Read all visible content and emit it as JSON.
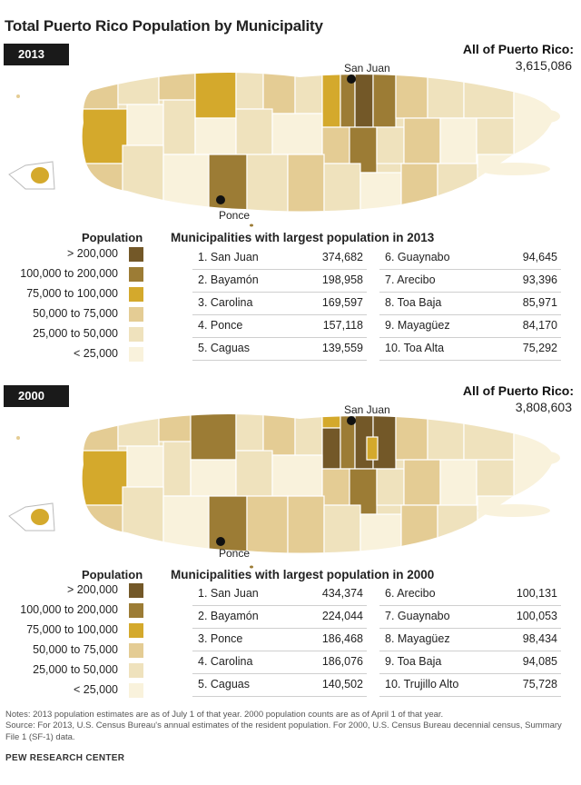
{
  "title": "Total Puerto Rico Population by Municipality",
  "colors": {
    "gt200k": "#735828",
    "100to200k": "#9c7c35",
    "75to100k": "#d4a92c",
    "50to75k": "#e4cc94",
    "25to50k": "#efe2bd",
    "lt25k": "#f9f2dc"
  },
  "panels": [
    {
      "year": "2013",
      "total_label": "All of Puerto Rico:",
      "total_value": "3,615,086",
      "city_north": "San Juan",
      "city_south": "Ponce",
      "legend_title": "Population",
      "legend": [
        {
          "label": "> 200,000",
          "color": "#735828"
        },
        {
          "label": "100,000 to 200,000",
          "color": "#9c7c35"
        },
        {
          "label": "75,000 to 100,000",
          "color": "#d4a92c"
        },
        {
          "label": "50,000 to 75,000",
          "color": "#e4cc94"
        },
        {
          "label": "25,000 to 50,000",
          "color": "#efe2bd"
        },
        {
          "label": "< 25,000",
          "color": "#f9f2dc"
        }
      ],
      "table_title": "Municipalities with largest population in 2013",
      "rows_left": [
        {
          "name": "1. San Juan",
          "value": "374,682"
        },
        {
          "name": "2. Bayamón",
          "value": "198,958"
        },
        {
          "name": "3. Carolina",
          "value": "169,597"
        },
        {
          "name": "4. Ponce",
          "value": "157,118"
        },
        {
          "name": "5. Caguas",
          "value": "139,559"
        }
      ],
      "rows_right": [
        {
          "name": "6. Guaynabo",
          "value": "94,645"
        },
        {
          "name": "7. Arecibo",
          "value": "93,396"
        },
        {
          "name": "8. Toa Baja",
          "value": "85,971"
        },
        {
          "name": "9. Mayagüez",
          "value": "84,170"
        },
        {
          "name": "10. Toa Alta",
          "value": "75,292"
        }
      ]
    },
    {
      "year": "2000",
      "total_label": "All of Puerto Rico:",
      "total_value": "3,808,603",
      "city_north": "San Juan",
      "city_south": "Ponce",
      "legend_title": "Population",
      "legend": [
        {
          "label": "> 200,000",
          "color": "#735828"
        },
        {
          "label": "100,000 to 200,000",
          "color": "#9c7c35"
        },
        {
          "label": "75,000 to 100,000",
          "color": "#d4a92c"
        },
        {
          "label": "50,000 to 75,000",
          "color": "#e4cc94"
        },
        {
          "label": "25,000 to 50,000",
          "color": "#efe2bd"
        },
        {
          "label": "< 25,000",
          "color": "#f9f2dc"
        }
      ],
      "table_title": "Municipalities with largest population in 2000",
      "rows_left": [
        {
          "name": "1. San Juan",
          "value": "434,374"
        },
        {
          "name": "2. Bayamón",
          "value": "224,044"
        },
        {
          "name": "3. Ponce",
          "value": "186,468"
        },
        {
          "name": "4. Carolina",
          "value": "186,076"
        },
        {
          "name": "5. Caguas",
          "value": "140,502"
        }
      ],
      "rows_right": [
        {
          "name": "6. Arecibo",
          "value": "100,131"
        },
        {
          "name": "7. Guaynabo",
          "value": "100,053"
        },
        {
          "name": "8. Mayagüez",
          "value": "98,434"
        },
        {
          "name": "9. Toa Baja",
          "value": "94,085"
        },
        {
          "name": "10. Trujillo Alto",
          "value": "75,728"
        }
      ]
    }
  ],
  "notes": "Notes: 2013 population estimates are as of July 1 of that year. 2000 population counts are as of April 1 of that year.",
  "source": "Source: For 2013, U.S. Census Bureau's annual estimates of the resident population. For 2000, U.S. Census Bureau decennial census, Summary File 1 (SF-1) data.",
  "footer": "PEW RESEARCH CENTER"
}
